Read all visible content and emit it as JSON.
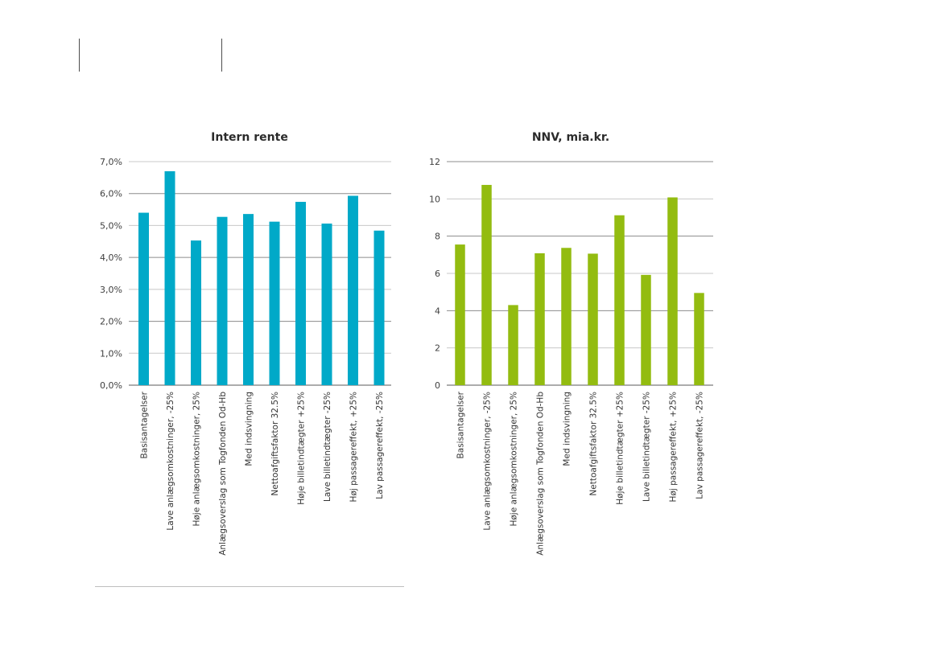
{
  "chart_data": [
    {
      "type": "bar",
      "title": "Intern rente",
      "xlabel": "",
      "ylabel": "",
      "color": "#00a9c8",
      "categories": [
        "Basisantagelser",
        "Lave anlægsomkostninger, -25%",
        "Høje anlægsomkostninger, 25%",
        "Anlægsoverslag som Togfonden Od-Hb",
        "Med indsvingning",
        "Nettoafgiftsfaktor 32.5%",
        "Høje billetindtægter +25%",
        "Lave billetindtægter -25%",
        "Høj passagereffekt, +25%",
        "Lav passagereffekt, -25%"
      ],
      "values": [
        5.4,
        6.7,
        4.53,
        5.27,
        5.36,
        5.12,
        5.74,
        5.06,
        5.93,
        4.84
      ],
      "ylim": [
        0,
        7
      ],
      "yticks": [
        0,
        1,
        2,
        3,
        4,
        5,
        6,
        7
      ],
      "ytick_labels": [
        "0,0%",
        "1,0%",
        "2,0%",
        "3,0%",
        "4,0%",
        "5,0%",
        "6,0%",
        "7,0%"
      ],
      "grid": true
    },
    {
      "type": "bar",
      "title": "NNV, mia.kr.",
      "xlabel": "",
      "ylabel": "",
      "color": "#93bc10",
      "categories": [
        "Basisantagelser",
        "Lave anlægsomkostninger, -25%",
        "Høje anlægsomkostninger, 25%",
        "Anlægsoverslag som Togfonden Od-Hb",
        "Med indsvingning",
        "Nettoafgiftsfaktor 32.5%",
        "Høje billetindtægter +25%",
        "Lave billetindtægter -25%",
        "Høj passagereffekt, +25%",
        "Lav passagereffekt, -25%"
      ],
      "values": [
        7.55,
        10.75,
        4.3,
        7.08,
        7.37,
        7.06,
        9.12,
        5.92,
        10.08,
        4.95
      ],
      "ylim": [
        0,
        12
      ],
      "yticks": [
        0,
        2,
        4,
        6,
        8,
        10,
        12
      ],
      "ytick_labels": [
        "0",
        "2",
        "4",
        "6",
        "8",
        "10",
        "12"
      ],
      "grid": true
    }
  ]
}
